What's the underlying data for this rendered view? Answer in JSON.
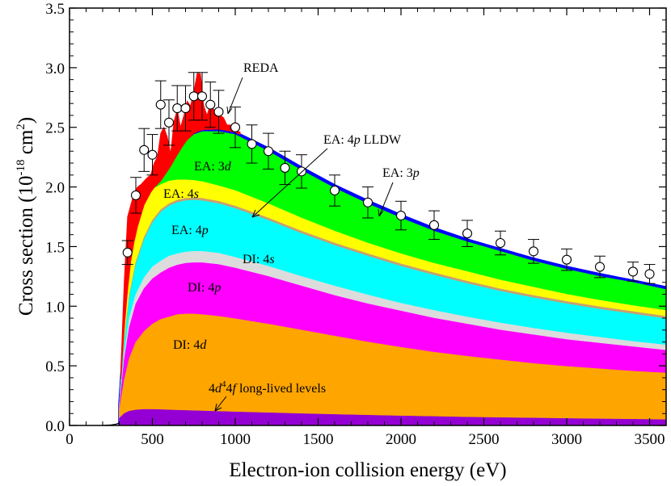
{
  "chart_data": {
    "type": "area",
    "title": "",
    "xlabel": "Electron-ion collision energy (eV)",
    "ylabel": "Cross section (10",
    "ylabel_exp": "-18",
    "ylabel_unit": " cm",
    "ylabel_unit_exp": "2",
    "ylabel_close": ")",
    "xlim": [
      0,
      3600
    ],
    "ylim": [
      0,
      3.5
    ],
    "xticks": [
      0,
      500,
      1000,
      1500,
      2000,
      2500,
      3000,
      3500
    ],
    "xtick_labels": [
      "0",
      "500",
      "1000",
      "1500",
      "2000",
      "2500",
      "3000",
      "3500"
    ],
    "yticks": [
      0,
      0.5,
      1.0,
      1.5,
      2.0,
      2.5,
      3.0,
      3.5
    ],
    "ytick_labels": [
      "0.0",
      "0.5",
      "1.0",
      "1.5",
      "2.0",
      "2.5",
      "3.0",
      "3.5"
    ],
    "stack_x": [
      300,
      330,
      360,
      400,
      450,
      500,
      550,
      600,
      650,
      700,
      750,
      800,
      900,
      1000,
      1200,
      1400,
      1600,
      1800,
      2000,
      2200,
      2400,
      2600,
      2800,
      3000,
      3200,
      3400,
      3600
    ],
    "layers": [
      {
        "name": "4d4 4f long-lived levels",
        "color": "#9400d3",
        "top": [
          0.06,
          0.1,
          0.12,
          0.13,
          0.135,
          0.135,
          0.133,
          0.13,
          0.128,
          0.126,
          0.124,
          0.122,
          0.118,
          0.114,
          0.106,
          0.099,
          0.092,
          0.086,
          0.08,
          0.075,
          0.07,
          0.066,
          0.062,
          0.058,
          0.055,
          0.052,
          0.049
        ]
      },
      {
        "name": "DI: 4d",
        "color": "#ffa500",
        "top": [
          0.13,
          0.38,
          0.56,
          0.7,
          0.79,
          0.85,
          0.89,
          0.91,
          0.93,
          0.935,
          0.935,
          0.93,
          0.915,
          0.895,
          0.85,
          0.8,
          0.75,
          0.7,
          0.655,
          0.615,
          0.58,
          0.55,
          0.52,
          0.495,
          0.475,
          0.455,
          0.44
        ]
      },
      {
        "name": "DI: 4p",
        "color": "#ff00ff",
        "top": [
          0.15,
          0.55,
          0.82,
          1.02,
          1.15,
          1.23,
          1.28,
          1.32,
          1.345,
          1.36,
          1.365,
          1.365,
          1.35,
          1.32,
          1.25,
          1.17,
          1.09,
          1.02,
          0.96,
          0.9,
          0.85,
          0.8,
          0.76,
          0.72,
          0.69,
          0.66,
          0.63
        ]
      },
      {
        "name": "DI: 4s",
        "color": "#dcdcdc",
        "top": [
          0.16,
          0.6,
          0.9,
          1.1,
          1.24,
          1.33,
          1.38,
          1.42,
          1.44,
          1.455,
          1.46,
          1.46,
          1.445,
          1.41,
          1.335,
          1.25,
          1.17,
          1.095,
          1.025,
          0.965,
          0.91,
          0.86,
          0.815,
          0.775,
          0.74,
          0.705,
          0.675
        ]
      },
      {
        "name": "EA: 4p",
        "color": "#00ffff",
        "top": [
          0.17,
          0.68,
          1.07,
          1.35,
          1.56,
          1.7,
          1.79,
          1.84,
          1.87,
          1.885,
          1.89,
          1.885,
          1.86,
          1.82,
          1.72,
          1.61,
          1.51,
          1.42,
          1.335,
          1.26,
          1.19,
          1.125,
          1.07,
          1.02,
          0.975,
          0.935,
          0.895
        ]
      },
      {
        "name": "EA: 4p LLDW",
        "color": "#c8a070",
        "top": [
          0.175,
          0.7,
          1.09,
          1.37,
          1.58,
          1.72,
          1.81,
          1.86,
          1.89,
          1.905,
          1.91,
          1.905,
          1.88,
          1.84,
          1.74,
          1.63,
          1.53,
          1.44,
          1.355,
          1.28,
          1.21,
          1.145,
          1.09,
          1.04,
          0.995,
          0.955,
          0.915
        ]
      },
      {
        "name": "EA: 4s",
        "color": "#ffff00",
        "top": [
          0.18,
          0.8,
          1.3,
          1.62,
          1.85,
          1.98,
          2.02,
          2.05,
          2.06,
          2.06,
          2.055,
          2.045,
          2.01,
          1.97,
          1.86,
          1.74,
          1.63,
          1.53,
          1.44,
          1.36,
          1.29,
          1.22,
          1.16,
          1.1,
          1.05,
          1.005,
          0.965
        ]
      },
      {
        "name": "EA: 3d",
        "color": "#00ff00",
        "top": [
          0.18,
          0.8,
          1.3,
          1.62,
          1.85,
          1.98,
          2.05,
          2.15,
          2.27,
          2.38,
          2.44,
          2.465,
          2.465,
          2.44,
          2.3,
          2.14,
          1.99,
          1.86,
          1.74,
          1.63,
          1.54,
          1.46,
          1.38,
          1.31,
          1.25,
          1.2,
          1.14
        ]
      },
      {
        "name": "EA: 3p",
        "color": "#0000ff",
        "top": [
          0.18,
          0.8,
          1.3,
          1.62,
          1.85,
          1.98,
          2.05,
          2.15,
          2.27,
          2.38,
          2.45,
          2.48,
          2.485,
          2.46,
          2.325,
          2.165,
          2.015,
          1.885,
          1.765,
          1.655,
          1.56,
          1.48,
          1.4,
          1.33,
          1.27,
          1.215,
          1.16
        ]
      }
    ],
    "threshold_x": [
      200,
      250,
      280,
      300
    ],
    "threshold_y": [
      0,
      0.005,
      0.01,
      0.02
    ],
    "reda": {
      "name": "REDA",
      "color": "#ff0000",
      "x": [
        310,
        330,
        350,
        370,
        390,
        410,
        430,
        450,
        470,
        490,
        510,
        530,
        550,
        570,
        590,
        610,
        630,
        650,
        670,
        690,
        710,
        730,
        750,
        770,
        790,
        810,
        830,
        850,
        870,
        890,
        910,
        930,
        950,
        970,
        990,
        1010,
        1030
      ],
      "y": [
        0.5,
        1.2,
        1.75,
        1.85,
        1.95,
        2.0,
        2.02,
        2.05,
        2.08,
        2.1,
        2.2,
        2.25,
        2.45,
        2.5,
        2.42,
        2.28,
        2.55,
        2.65,
        2.5,
        2.6,
        2.72,
        2.68,
        2.8,
        2.95,
        2.95,
        2.68,
        2.6,
        2.7,
        2.65,
        2.6,
        2.6,
        2.58,
        2.52,
        2.52,
        2.48,
        2.47,
        2.46
      ]
    },
    "experiment": {
      "x": [
        350,
        400,
        450,
        500,
        550,
        600,
        650,
        700,
        750,
        800,
        850,
        900,
        1000,
        1100,
        1200,
        1300,
        1400,
        1600,
        1800,
        2000,
        2200,
        2400,
        2600,
        2800,
        3000,
        3200,
        3400,
        3500
      ],
      "y": [
        1.45,
        1.93,
        2.31,
        2.27,
        2.69,
        2.54,
        2.66,
        2.66,
        2.76,
        2.76,
        2.69,
        2.63,
        2.5,
        2.36,
        2.3,
        2.16,
        2.13,
        1.97,
        1.87,
        1.76,
        1.68,
        1.61,
        1.53,
        1.46,
        1.39,
        1.33,
        1.29,
        1.27
      ],
      "err": [
        0.1,
        0.15,
        0.18,
        0.17,
        0.2,
        0.19,
        0.19,
        0.19,
        0.2,
        0.2,
        0.19,
        0.18,
        0.17,
        0.16,
        0.15,
        0.14,
        0.14,
        0.13,
        0.13,
        0.12,
        0.12,
        0.11,
        0.1,
        0.1,
        0.09,
        0.09,
        0.08,
        0.08
      ]
    },
    "annotations": {
      "reda": "REDA",
      "ea_4p_lldw_pre": "EA: 4",
      "ea_4p_lldw_ital": "p",
      "ea_4p_lldw_post": " LLDW",
      "ea_3p_pre": "EA: 3",
      "ea_3p_ital": "p",
      "ea_3d_pre": "EA: 3",
      "ea_3d_ital": "d",
      "ea_4s_pre": "EA: 4",
      "ea_4s_ital": "s",
      "ea_4p_pre": "EA: 4",
      "ea_4p_ital": "p",
      "di_4s_pre": "DI: 4",
      "di_4s_ital": "s",
      "di_4p_pre": "DI: 4",
      "di_4p_ital": "p",
      "di_4d_pre": "DI: 4",
      "di_4d_ital": "d",
      "ll_a": "4",
      "ll_b": "d",
      "ll_c": "4",
      "ll_d": "4",
      "ll_e": "f",
      "ll_f": " long-lived levels"
    }
  }
}
